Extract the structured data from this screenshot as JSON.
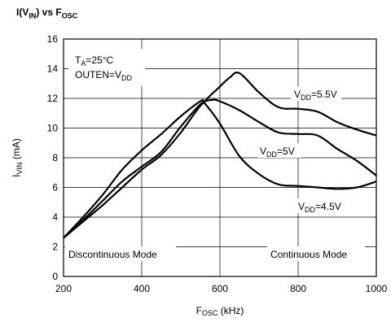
{
  "chart_data": {
    "type": "line",
    "title": {
      "main": "I(V",
      "main_sub": "IN",
      "main_mid": ") vs F",
      "main_sub2": "OSC"
    },
    "xlabel": {
      "main": "F",
      "sub": "OSC",
      "unit": " (kHz)"
    },
    "ylabel": {
      "main": "I",
      "sub": "VIN",
      "unit": " (mA)"
    },
    "xlim": [
      200,
      1000
    ],
    "ylim": [
      0,
      16
    ],
    "x_ticks": [
      "200",
      "400",
      "600",
      "800",
      "1000"
    ],
    "y_ticks": [
      "0",
      "2",
      "4",
      "6",
      "8",
      "10",
      "12",
      "14",
      "16"
    ],
    "grid": true,
    "conditions": {
      "ta": {
        "main": "T",
        "sub": "A",
        "rest": "=25°C"
      },
      "outen": {
        "main": "OUTEN=V",
        "sub": "DD"
      }
    },
    "region_labels": {
      "left": "Discontinuous Mode",
      "right": "Continuous Mode"
    },
    "series": [
      {
        "name": "VDD=5.5V",
        "label": {
          "main": "V",
          "sub": "DD",
          "rest": "=5.5V"
        },
        "x": [
          200,
          250,
          300,
          350,
          400,
          450,
          500,
          550,
          600,
          625,
          650,
          700,
          750,
          800,
          850,
          900,
          950,
          1000
        ],
        "y": [
          2.6,
          3.7,
          4.8,
          6.0,
          7.2,
          8.2,
          9.7,
          11.5,
          12.8,
          13.4,
          13.7,
          12.4,
          11.4,
          11.3,
          11.1,
          10.4,
          9.9,
          9.5
        ]
      },
      {
        "name": "VDD=5V",
        "label": {
          "main": "V",
          "sub": "DD",
          "rest": "=5V"
        },
        "x": [
          200,
          250,
          300,
          350,
          400,
          450,
          500,
          550,
          580,
          600,
          650,
          700,
          750,
          800,
          850,
          900,
          950,
          1000
        ],
        "y": [
          2.6,
          3.8,
          5.1,
          6.4,
          7.4,
          8.4,
          10.1,
          11.6,
          11.9,
          11.8,
          11.2,
          10.4,
          9.7,
          9.6,
          9.5,
          8.6,
          7.8,
          6.8
        ]
      },
      {
        "name": "VDD=4.5V",
        "label": {
          "main": "V",
          "sub": "DD",
          "rest": "=4.5V"
        },
        "x": [
          200,
          250,
          300,
          350,
          400,
          450,
          500,
          550,
          560,
          600,
          650,
          700,
          750,
          800,
          850,
          900,
          950,
          1000
        ],
        "y": [
          2.6,
          4.0,
          5.5,
          7.2,
          8.5,
          9.6,
          10.8,
          11.8,
          11.7,
          10.3,
          8.1,
          6.9,
          6.2,
          6.1,
          6.0,
          5.9,
          6.0,
          6.4
        ]
      }
    ]
  }
}
